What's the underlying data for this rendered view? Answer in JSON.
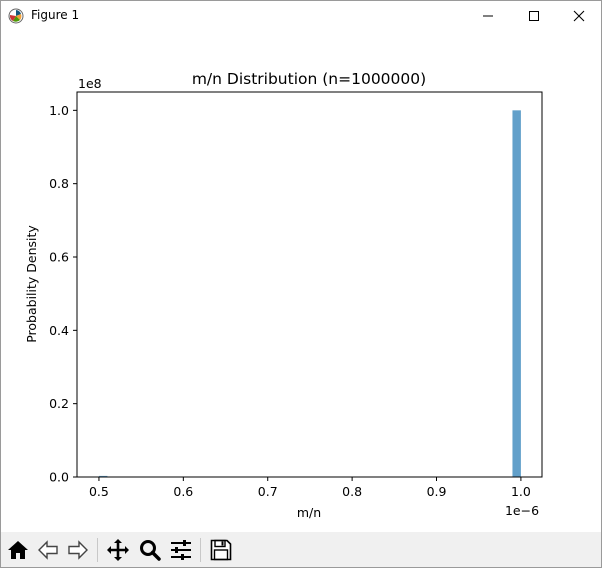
{
  "window": {
    "title": "Figure 1",
    "icon": "matplotlib-icon",
    "controls": [
      "minimize-icon",
      "maximize-icon",
      "close-icon"
    ]
  },
  "toolbar": {
    "buttons": [
      {
        "name": "home",
        "icon": "home-icon"
      },
      {
        "name": "back",
        "icon": "back-arrow-icon"
      },
      {
        "name": "forward",
        "icon": "forward-arrow-icon"
      },
      {
        "name": "pan",
        "icon": "move-icon"
      },
      {
        "name": "zoom",
        "icon": "magnifier-icon"
      },
      {
        "name": "configure-subplots",
        "icon": "sliders-icon"
      },
      {
        "name": "save",
        "icon": "floppy-disk-icon"
      }
    ]
  },
  "chart_data": {
    "type": "bar",
    "title": "m/n Distribution (n=1000000)",
    "xlabel": "m/n",
    "ylabel": "Probability Density",
    "x_offset_label": "1e−6",
    "y_offset_label": "1e8",
    "xlim": [
      0.474,
      1.025
    ],
    "ylim": [
      0,
      1.05
    ],
    "xticks": [
      0.5,
      0.6,
      0.7,
      0.8,
      0.9,
      1.0
    ],
    "xtick_labels": [
      "0.5",
      "0.6",
      "0.7",
      "0.8",
      "0.9",
      "1.0"
    ],
    "yticks": [
      0.0,
      0.2,
      0.4,
      0.6,
      0.8,
      1.0
    ],
    "ytick_labels": [
      "0.0",
      "0.2",
      "0.4",
      "0.6",
      "0.8",
      "1.0"
    ],
    "bars": [
      {
        "x_start": 0.5,
        "x_end": 0.51,
        "value": 0.003
      },
      {
        "x_start": 0.99,
        "x_end": 1.0,
        "value": 1.0
      }
    ],
    "bar_color": "#1f77b4",
    "bar_opacity": 0.7,
    "grid": false,
    "legend": null
  }
}
